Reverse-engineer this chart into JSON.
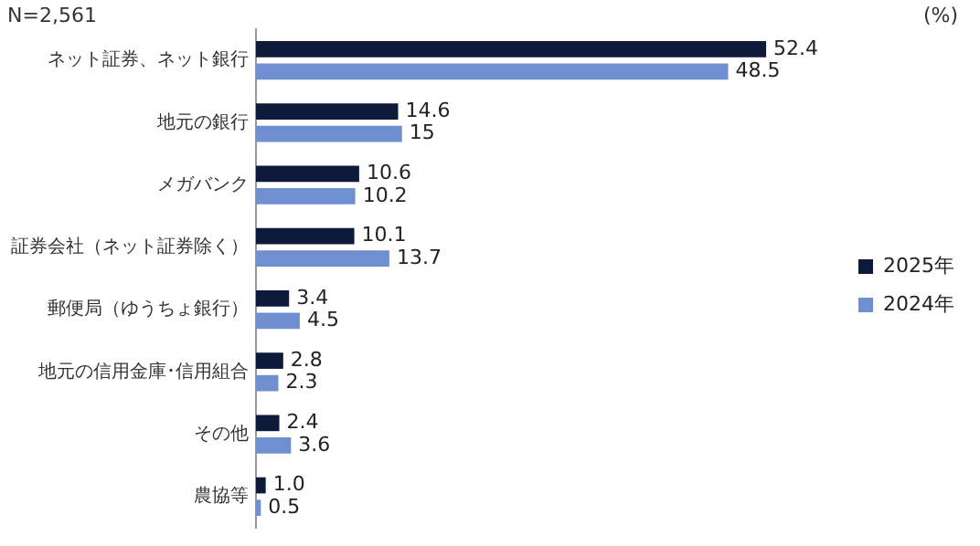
{
  "chart_data": {
    "type": "bar",
    "orientation": "horizontal",
    "categories": [
      "ネット証券、ネット銀行",
      "地元の銀行",
      "メガバンク",
      "証券会社（ネット証券除く）",
      "郵便局（ゆうちょ銀行）",
      "地元の信用金庫･信用組合",
      "その他",
      "農協等"
    ],
    "series": [
      {
        "name": "2025年",
        "color": "#0d1a3a",
        "values": [
          52.4,
          14.6,
          10.6,
          10.1,
          3.4,
          2.8,
          2.4,
          1.0
        ],
        "value_labels": [
          "52.4",
          "14.6",
          "10.6",
          "10.1",
          "3.4",
          "2.8",
          "2.4",
          "1.0"
        ]
      },
      {
        "name": "2024年",
        "color": "#6f8fd0",
        "values": [
          48.5,
          15,
          10.2,
          13.7,
          4.5,
          2.3,
          3.6,
          0.5
        ],
        "value_labels": [
          "48.5",
          "15",
          "10.2",
          "13.7",
          "4.5",
          "2.3",
          "3.6",
          "0.5"
        ]
      }
    ],
    "annotations": [
      "N=2,561",
      "(%)"
    ],
    "legend": "right",
    "grid": false
  }
}
